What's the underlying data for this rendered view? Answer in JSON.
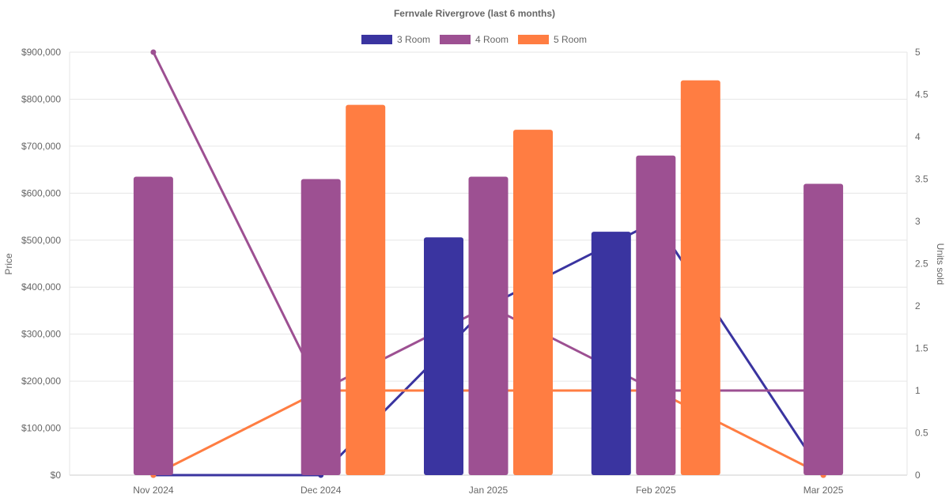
{
  "chart_data": {
    "type": "bar",
    "title": "Fernvale Rivergrove (last 6 months)",
    "categories": [
      "Nov 2024",
      "Dec 2024",
      "Jan 2025",
      "Feb 2025",
      "Mar 2025"
    ],
    "ylabel": "Price",
    "y2label": "Units sold",
    "ylim": [
      0,
      900000
    ],
    "y2lim": [
      0,
      5
    ],
    "yticks": [
      "$0",
      "$100,000",
      "$200,000",
      "$300,000",
      "$400,000",
      "$500,000",
      "$600,000",
      "$700,000",
      "$800,000",
      "$900,000"
    ],
    "y2ticks": [
      "0",
      "0.5",
      "1",
      "1.5",
      "2",
      "2.5",
      "3",
      "3.5",
      "4",
      "4.5",
      "5"
    ],
    "legend_position": "top",
    "grid": true,
    "series": [
      {
        "name": "3 Room",
        "color": "#3a34a0",
        "price": [
          null,
          null,
          506000,
          518000,
          null
        ],
        "units": [
          0,
          0,
          2,
          3,
          0
        ]
      },
      {
        "name": "4 Room",
        "color": "#9d5092",
        "price": [
          635000,
          630000,
          635000,
          680000,
          620000
        ],
        "units": [
          5,
          1,
          2,
          1,
          1
        ]
      },
      {
        "name": "5 Room",
        "color": "#ff7d42",
        "price": [
          null,
          788000,
          735000,
          840000,
          null
        ],
        "units": [
          0,
          1,
          1,
          1,
          0
        ]
      }
    ]
  }
}
